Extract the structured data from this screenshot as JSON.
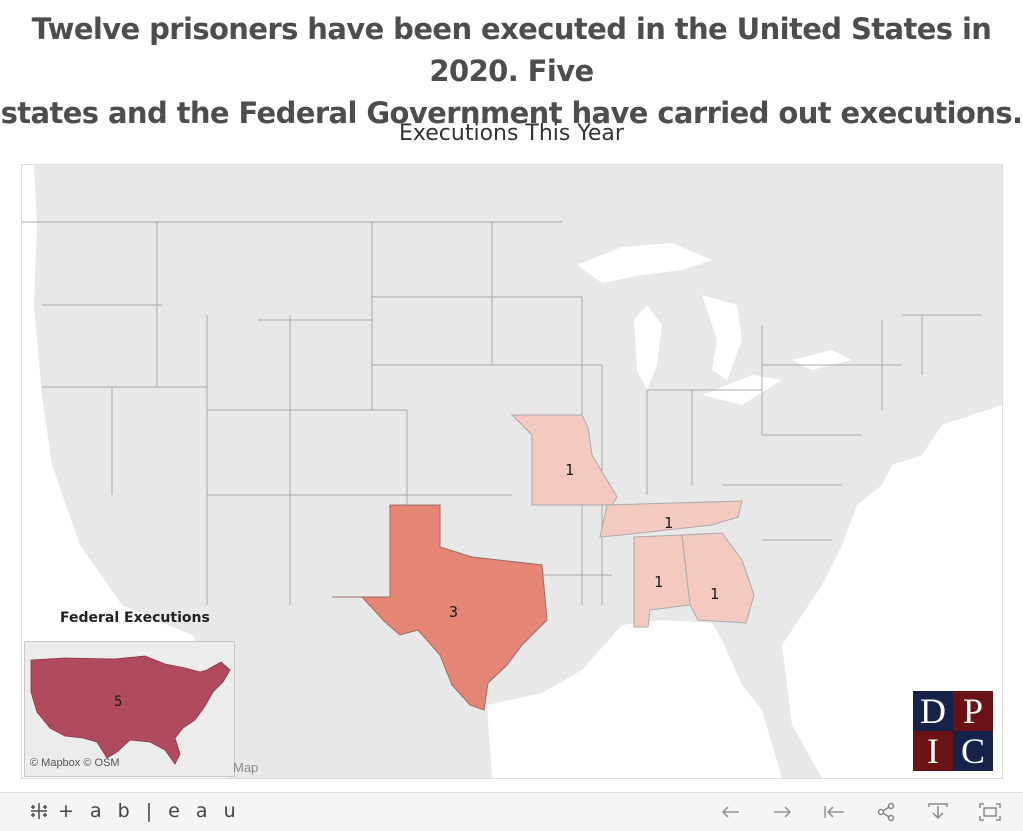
{
  "headline": {
    "line1": "Twelve prisoners have been executed in the United States in 2020. Five",
    "line2": "states and the Federal Government have carried out executions."
  },
  "map": {
    "title": "Executions This Year",
    "states": [
      {
        "name": "Missouri",
        "executions": 1,
        "label": "1",
        "color": "#f4c9c0"
      },
      {
        "name": "Tennessee",
        "executions": 1,
        "label": "1",
        "color": "#f4c9c0"
      },
      {
        "name": "Alabama",
        "executions": 1,
        "label": "1",
        "color": "#f4c9c0"
      },
      {
        "name": "Georgia",
        "executions": 1,
        "label": "1",
        "color": "#f4c9c0"
      },
      {
        "name": "Texas",
        "executions": 3,
        "label": "3",
        "color": "#e58575"
      }
    ],
    "colors": {
      "land": "#e8e8e8",
      "water": "#ffffff",
      "borders": "#a8a8a8"
    }
  },
  "federal": {
    "title": "Federal Executions",
    "executions": 5,
    "label": "5",
    "color": "#b04a5d",
    "attribution": "© Mapbox  © OSM",
    "ghost_text": "Map"
  },
  "logo": {
    "letters": [
      "D",
      "P",
      "I",
      "C"
    ]
  },
  "toolbar": {
    "brand_text": "+ a b | e a u",
    "buttons": [
      "undo-icon",
      "redo-icon",
      "revert-icon",
      "share-icon",
      "download-icon",
      "fullscreen-icon"
    ]
  }
}
